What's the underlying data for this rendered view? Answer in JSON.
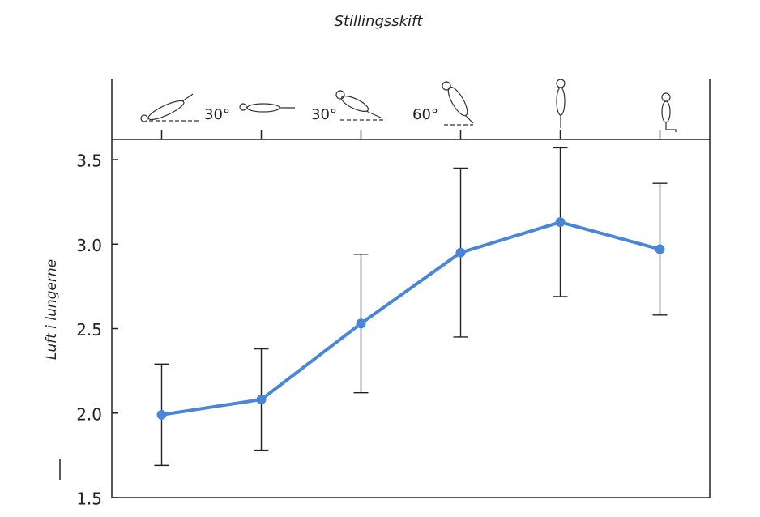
{
  "chart_data": {
    "type": "line",
    "title": "Stillingsskift",
    "y_label": "Luft i lungerne",
    "annotations": [
      "30°",
      "30°",
      "60°"
    ],
    "categories": [
      null,
      null,
      null,
      null,
      null,
      null
    ],
    "values": [
      1.99,
      2.08,
      2.53,
      2.95,
      3.13,
      2.97
    ],
    "errors": [
      0.3,
      0.3,
      0.41,
      0.5,
      0.44,
      0.39
    ],
    "color": "#4a86d8",
    "ylim": [
      1.5,
      3.62
    ],
    "yticks": [
      1.5,
      {
        "value": 2,
        "label": "2.0"
      },
      2.5,
      {
        "value": 3,
        "label": "3.0"
      },
      3.5
    ],
    "grid": false
  }
}
